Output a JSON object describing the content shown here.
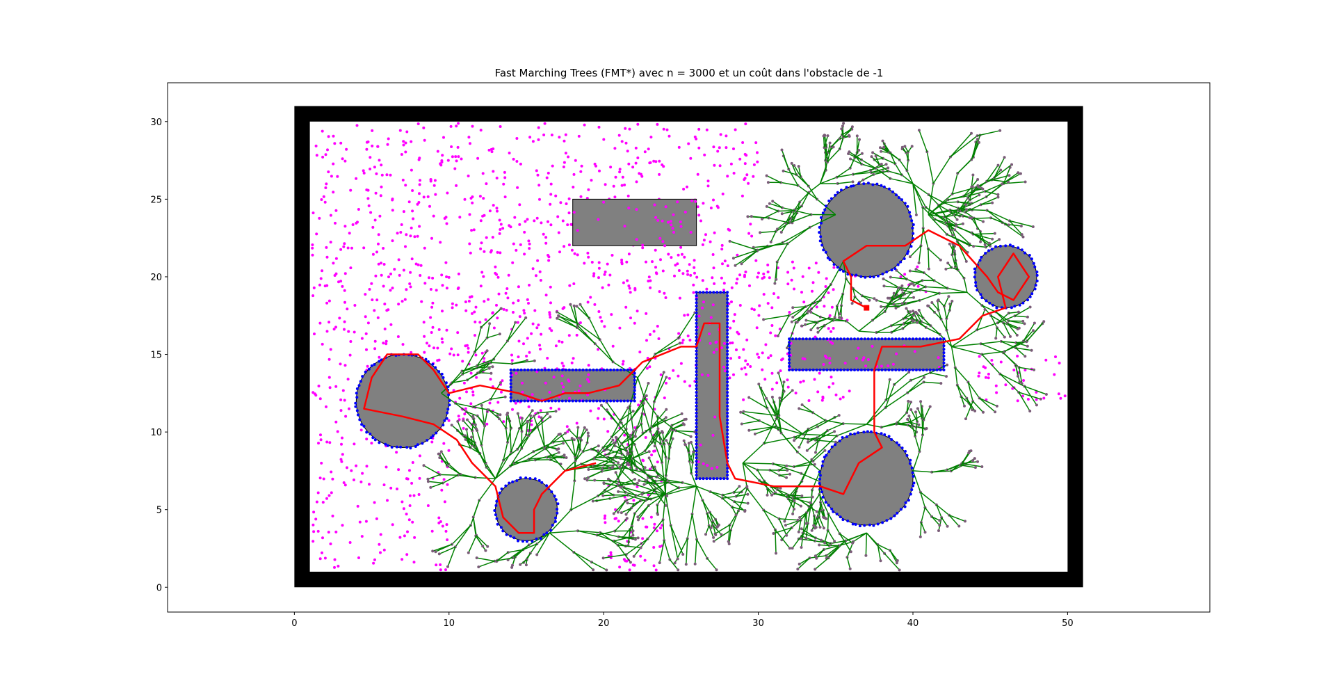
{
  "chart_data": {
    "type": "scatter",
    "title": "Fast Marching Trees (FMT*) avec n = 3000 et un coût dans l'obstacle de -1",
    "xlabel": "",
    "ylabel": "",
    "xlim": [
      -8.2,
      59.2
    ],
    "ylim": [
      -1.6,
      32.5
    ],
    "x_ticks": [
      0,
      10,
      20,
      30,
      40,
      50
    ],
    "y_ticks": [
      0,
      5,
      10,
      15,
      20,
      25,
      30
    ],
    "grid": false,
    "n_samples": 3000,
    "obstacle_cost": -1,
    "colors": {
      "wall": "#000000",
      "obstacle_fill": "#808080",
      "obstacle_edge": "#000000",
      "unvisited_sample": "#ff00ff",
      "tree_edge": "#008000",
      "tree_node": "#7a5c78",
      "boundary_sample": "#0000ff",
      "path": "#ff0000",
      "goal": "#ff0000"
    },
    "workspace": {
      "outer": {
        "x": [
          0,
          51
        ],
        "y": [
          0,
          31
        ]
      },
      "inner": {
        "x": [
          1,
          50
        ],
        "y": [
          1,
          30
        ]
      }
    },
    "rect_obstacles": [
      {
        "x": 18,
        "y": 22,
        "w": 8,
        "h": 3
      },
      {
        "x": 26,
        "y": 7,
        "w": 2,
        "h": 12
      },
      {
        "x": 14,
        "y": 12,
        "w": 8,
        "h": 2
      },
      {
        "x": 32,
        "y": 14,
        "w": 10,
        "h": 2
      }
    ],
    "circle_obstacles": [
      {
        "cx": 7,
        "cy": 12,
        "r": 3
      },
      {
        "cx": 15,
        "cy": 5,
        "r": 2
      },
      {
        "cx": 37,
        "cy": 23,
        "r": 3
      },
      {
        "cx": 46,
        "cy": 20,
        "r": 2
      },
      {
        "cx": 37,
        "cy": 7,
        "r": 3
      }
    ],
    "goal": {
      "x": 37,
      "y": 18
    },
    "path": [
      [
        37,
        18
      ],
      [
        36,
        18.5
      ],
      [
        36,
        20
      ],
      [
        35.5,
        21
      ],
      [
        37,
        22
      ],
      [
        39.5,
        22
      ],
      [
        41,
        23
      ],
      [
        43,
        22
      ],
      [
        44.8,
        20
      ],
      [
        45.5,
        19
      ],
      [
        46.5,
        18.5
      ],
      [
        47.5,
        20
      ],
      [
        46.5,
        21.5
      ],
      [
        45.5,
        20
      ],
      [
        46,
        18
      ],
      [
        44.5,
        17.5
      ],
      [
        43,
        16
      ],
      [
        40.5,
        15.5
      ],
      [
        38,
        15.5
      ],
      [
        37.5,
        14
      ],
      [
        37.5,
        12
      ],
      [
        37.5,
        10
      ],
      [
        38,
        9
      ],
      [
        36.5,
        8
      ],
      [
        35.5,
        6
      ],
      [
        34,
        6.5
      ],
      [
        31,
        6.5
      ],
      [
        28.5,
        7
      ],
      [
        28,
        8
      ],
      [
        27.5,
        11
      ],
      [
        27.5,
        13
      ],
      [
        27.5,
        17
      ],
      [
        26.5,
        17
      ],
      [
        26,
        15.5
      ],
      [
        25,
        15.5
      ],
      [
        22.5,
        14.5
      ],
      [
        21,
        13
      ],
      [
        19,
        12.5
      ],
      [
        17.5,
        12.5
      ],
      [
        16,
        12
      ],
      [
        14.5,
        12.5
      ],
      [
        12,
        13
      ],
      [
        10,
        12.5
      ],
      [
        9,
        14
      ],
      [
        8,
        15
      ],
      [
        6,
        15
      ],
      [
        5,
        13.5
      ],
      [
        4.5,
        11.5
      ],
      [
        7,
        11
      ],
      [
        9,
        10.5
      ],
      [
        10.5,
        9.5
      ],
      [
        11.5,
        8
      ],
      [
        13,
        6.5
      ],
      [
        13.5,
        4.5
      ],
      [
        14.5,
        3.5
      ],
      [
        15.5,
        3.5
      ],
      [
        15.5,
        5
      ],
      [
        16,
        6
      ],
      [
        17.5,
        7.5
      ],
      [
        19.5,
        8
      ]
    ]
  }
}
